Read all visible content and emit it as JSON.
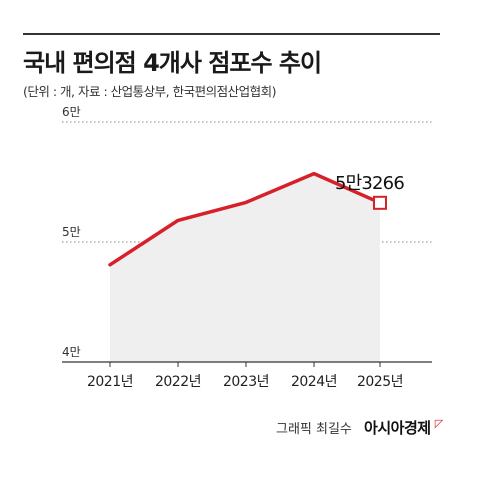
{
  "header": {
    "title": "국내 편의점 4개사 점포수 추이",
    "subtitle": "(단위 : 개, 자료 : 산업통상부, 한국편의점산업협회)"
  },
  "credit": {
    "author": "그래픽 최길수",
    "brand": "아시아경제",
    "brand_mark": "◸"
  },
  "chart_data": {
    "type": "area",
    "categories": [
      "2021년",
      "2022년",
      "2023년",
      "2024년",
      "2025년"
    ],
    "series": [
      {
        "values": [
          48100,
          51800,
          53300,
          55700,
          53266
        ],
        "color": "#d6202a"
      }
    ],
    "y_ticks": [
      {
        "value": 40000,
        "label": "4만"
      },
      {
        "value": 50000,
        "label": "5만"
      },
      {
        "value": 60000,
        "label": "6만"
      }
    ],
    "ylim": [
      40000,
      60000
    ],
    "annotation": {
      "index": 4,
      "text": "5만3266"
    },
    "area_fill": "#efefef",
    "line_color": "#d6202a",
    "grid": "dotted",
    "xlabel": "",
    "ylabel": ""
  }
}
